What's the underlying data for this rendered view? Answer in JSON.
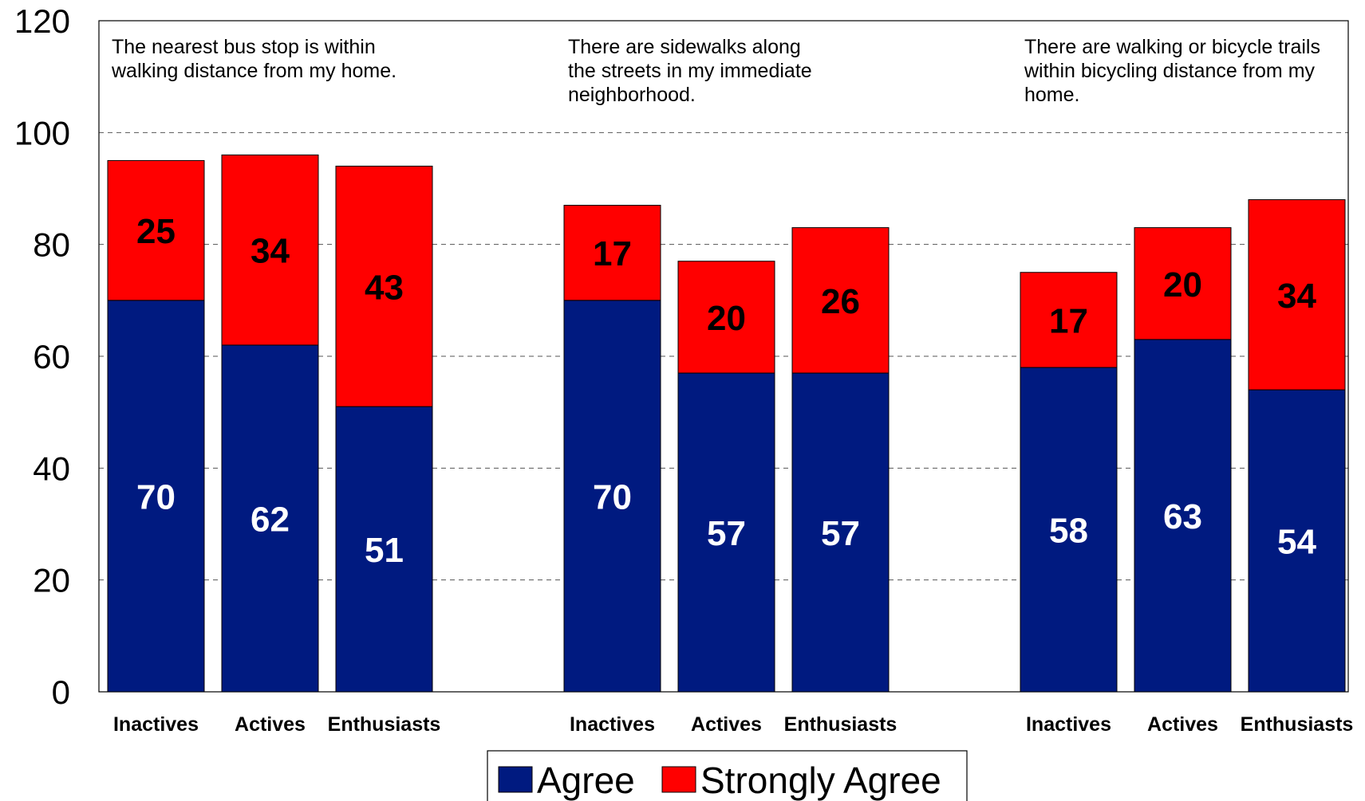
{
  "chart_data": {
    "type": "bar",
    "stacked": true,
    "ylim": [
      0,
      120
    ],
    "yticks": [
      0,
      20,
      40,
      60,
      80,
      100,
      120
    ],
    "grid": "horizontal-dashed",
    "legend_position": "bottom-center",
    "groups": [
      {
        "title": [
          "The nearest bus stop is within",
          "walking distance from my home."
        ],
        "categories": [
          "Inactives",
          "Actives",
          "Enthusiasts"
        ],
        "agree": [
          70,
          62,
          51
        ],
        "strongly_agree": [
          25,
          34,
          43
        ]
      },
      {
        "title": [
          "There are sidewalks along",
          "the streets in my immediate",
          "neighborhood."
        ],
        "categories": [
          "Inactives",
          "Actives",
          "Enthusiasts"
        ],
        "agree": [
          70,
          57,
          57
        ],
        "strongly_agree": [
          17,
          20,
          26
        ]
      },
      {
        "title": [
          "There are walking or bicycle trails",
          "within bicycling distance from my",
          "home."
        ],
        "categories": [
          "Inactives",
          "Actives",
          "Enthusiasts"
        ],
        "agree": [
          58,
          63,
          54
        ],
        "strongly_agree": [
          17,
          20,
          34
        ]
      }
    ],
    "series": [
      {
        "name": "Agree",
        "color": "#001a80"
      },
      {
        "name": "Strongly Agree",
        "color": "#ff0000"
      }
    ]
  }
}
